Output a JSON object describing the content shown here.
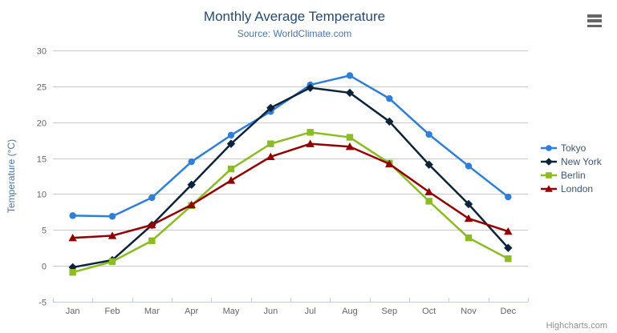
{
  "chart_data": {
    "type": "line",
    "title": "Monthly Average Temperature",
    "subtitle": "Source: WorldClimate.com",
    "categories": [
      "Jan",
      "Feb",
      "Mar",
      "Apr",
      "May",
      "Jun",
      "Jul",
      "Aug",
      "Sep",
      "Oct",
      "Nov",
      "Dec"
    ],
    "xlabel": "",
    "ylabel": "Temperature (°C)",
    "ylim": [
      -5,
      30
    ],
    "yticks": [
      -5,
      0,
      5,
      10,
      15,
      20,
      25,
      30
    ],
    "grid": true,
    "legend_position": "right",
    "series": [
      {
        "name": "Tokyo",
        "color": "#2f7ed8",
        "marker": "circle",
        "values": [
          7.0,
          6.9,
          9.5,
          14.5,
          18.2,
          21.5,
          25.2,
          26.5,
          23.3,
          18.3,
          13.9,
          9.6
        ]
      },
      {
        "name": "New York",
        "color": "#0d233a",
        "marker": "diamond",
        "values": [
          -0.2,
          0.8,
          5.7,
          11.3,
          17.0,
          22.0,
          24.8,
          24.1,
          20.1,
          14.1,
          8.6,
          2.5
        ]
      },
      {
        "name": "Berlin",
        "color": "#8bbc21",
        "marker": "square",
        "values": [
          -0.9,
          0.6,
          3.5,
          8.4,
          13.5,
          17.0,
          18.6,
          17.9,
          14.3,
          9.0,
          3.9,
          1.0
        ]
      },
      {
        "name": "London",
        "color": "#910000",
        "marker": "triangle",
        "values": [
          3.9,
          4.2,
          5.7,
          8.5,
          11.9,
          15.2,
          17.0,
          16.6,
          14.2,
          10.3,
          6.6,
          4.8
        ]
      }
    ]
  },
  "colors": {
    "title": "#274b6d",
    "subtitle": "#4d759e",
    "axis_label": "#666666",
    "gridline": "#c8c8c8",
    "axis_line": "#c0d0e0",
    "legend_text": "#3e576f",
    "credits": "#909090",
    "menu_icon": "#666666"
  },
  "credits": {
    "label": "Highcharts.com"
  },
  "export_menu": {
    "icon": "hamburger-icon"
  }
}
